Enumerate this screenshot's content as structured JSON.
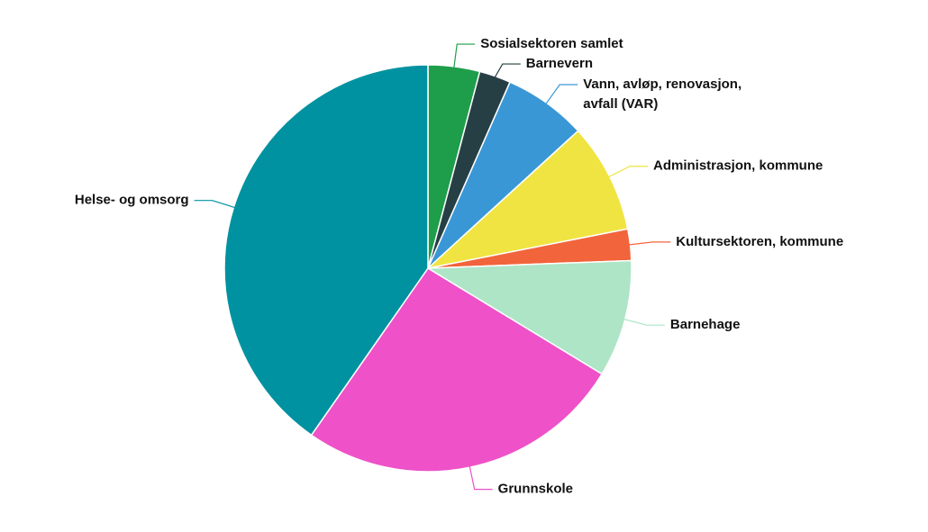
{
  "chart_data": {
    "type": "pie",
    "categories": [
      "Sosialsektoren samlet",
      "Barnevern",
      "Vann, avløp, renovasjon, avfall (VAR)",
      "Administrasjon, kommune",
      "Kultursektoren, kommune",
      "Barnehage",
      "Grunnskole",
      "Helse- og omsorg"
    ],
    "values": [
      4.1,
      2.5,
      6.6,
      8.7,
      2.5,
      9.3,
      26.0,
      40.3
    ],
    "colors": [
      "#1e9e4a",
      "#263f45",
      "#3a97d6",
      "#f0e442",
      "#f2643c",
      "#ade5c6",
      "#ee51c8",
      "#0092a0"
    ]
  }
}
